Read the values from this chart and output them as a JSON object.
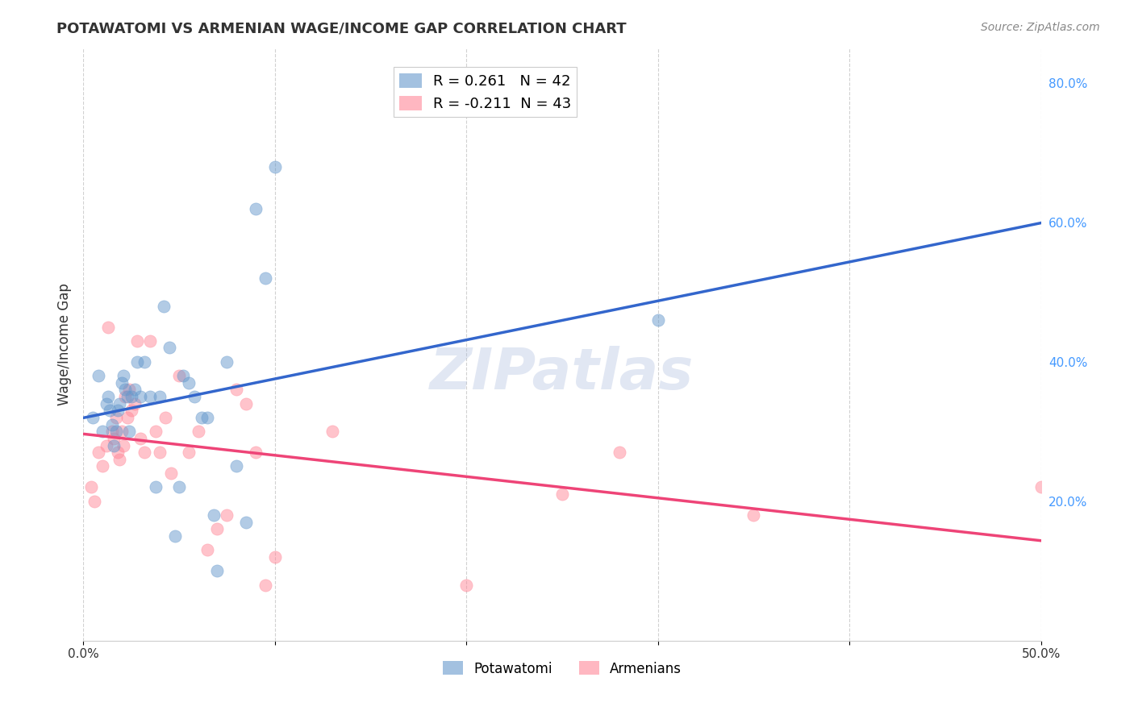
{
  "title": "POTAWATOMI VS ARMENIAN WAGE/INCOME GAP CORRELATION CHART",
  "source": "Source: ZipAtlas.com",
  "xlabel": "",
  "ylabel": "Wage/Income Gap",
  "xlim": [
    0.0,
    0.5
  ],
  "ylim": [
    0.0,
    0.85
  ],
  "ytick_labels": [
    "20.0%",
    "40.0%",
    "60.0%",
    "80.0%"
  ],
  "ytick_values": [
    0.2,
    0.4,
    0.6,
    0.8
  ],
  "xtick_labels": [
    "0.0%",
    "",
    "",
    "",
    "",
    "50.0%"
  ],
  "xtick_values": [
    0.0,
    0.1,
    0.2,
    0.3,
    0.4,
    0.5
  ],
  "grid_color": "#cccccc",
  "background_color": "#ffffff",
  "watermark": "ZIPatlas",
  "legend_R_blue": "0.261",
  "legend_N_blue": "42",
  "legend_R_pink": "-0.211",
  "legend_N_pink": "43",
  "blue_color": "#6699cc",
  "pink_color": "#ff8899",
  "blue_label": "Potawatomi",
  "pink_label": "Armenians",
  "potawatomi_x": [
    0.005,
    0.008,
    0.01,
    0.012,
    0.013,
    0.014,
    0.015,
    0.016,
    0.017,
    0.018,
    0.019,
    0.02,
    0.021,
    0.022,
    0.023,
    0.024,
    0.025,
    0.027,
    0.028,
    0.03,
    0.032,
    0.035,
    0.038,
    0.04,
    0.042,
    0.045,
    0.048,
    0.05,
    0.052,
    0.055,
    0.058,
    0.062,
    0.065,
    0.068,
    0.07,
    0.075,
    0.08,
    0.085,
    0.09,
    0.095,
    0.1,
    0.3
  ],
  "potawatomi_y": [
    0.32,
    0.38,
    0.3,
    0.34,
    0.35,
    0.33,
    0.31,
    0.28,
    0.3,
    0.33,
    0.34,
    0.37,
    0.38,
    0.36,
    0.35,
    0.3,
    0.35,
    0.36,
    0.4,
    0.35,
    0.4,
    0.35,
    0.22,
    0.35,
    0.48,
    0.42,
    0.15,
    0.22,
    0.38,
    0.37,
    0.35,
    0.32,
    0.32,
    0.18,
    0.1,
    0.4,
    0.25,
    0.17,
    0.62,
    0.52,
    0.68,
    0.46
  ],
  "armenian_x": [
    0.004,
    0.006,
    0.008,
    0.01,
    0.012,
    0.013,
    0.015,
    0.016,
    0.017,
    0.018,
    0.019,
    0.02,
    0.021,
    0.022,
    0.023,
    0.024,
    0.025,
    0.027,
    0.028,
    0.03,
    0.032,
    0.035,
    0.038,
    0.04,
    0.043,
    0.046,
    0.05,
    0.055,
    0.06,
    0.065,
    0.07,
    0.075,
    0.08,
    0.085,
    0.09,
    0.095,
    0.1,
    0.13,
    0.2,
    0.25,
    0.28,
    0.35,
    0.5
  ],
  "armenian_y": [
    0.22,
    0.2,
    0.27,
    0.25,
    0.28,
    0.45,
    0.3,
    0.29,
    0.32,
    0.27,
    0.26,
    0.3,
    0.28,
    0.35,
    0.32,
    0.36,
    0.33,
    0.34,
    0.43,
    0.29,
    0.27,
    0.43,
    0.3,
    0.27,
    0.32,
    0.24,
    0.38,
    0.27,
    0.3,
    0.13,
    0.16,
    0.18,
    0.36,
    0.34,
    0.27,
    0.08,
    0.12,
    0.3,
    0.08,
    0.21,
    0.27,
    0.18,
    0.22
  ]
}
